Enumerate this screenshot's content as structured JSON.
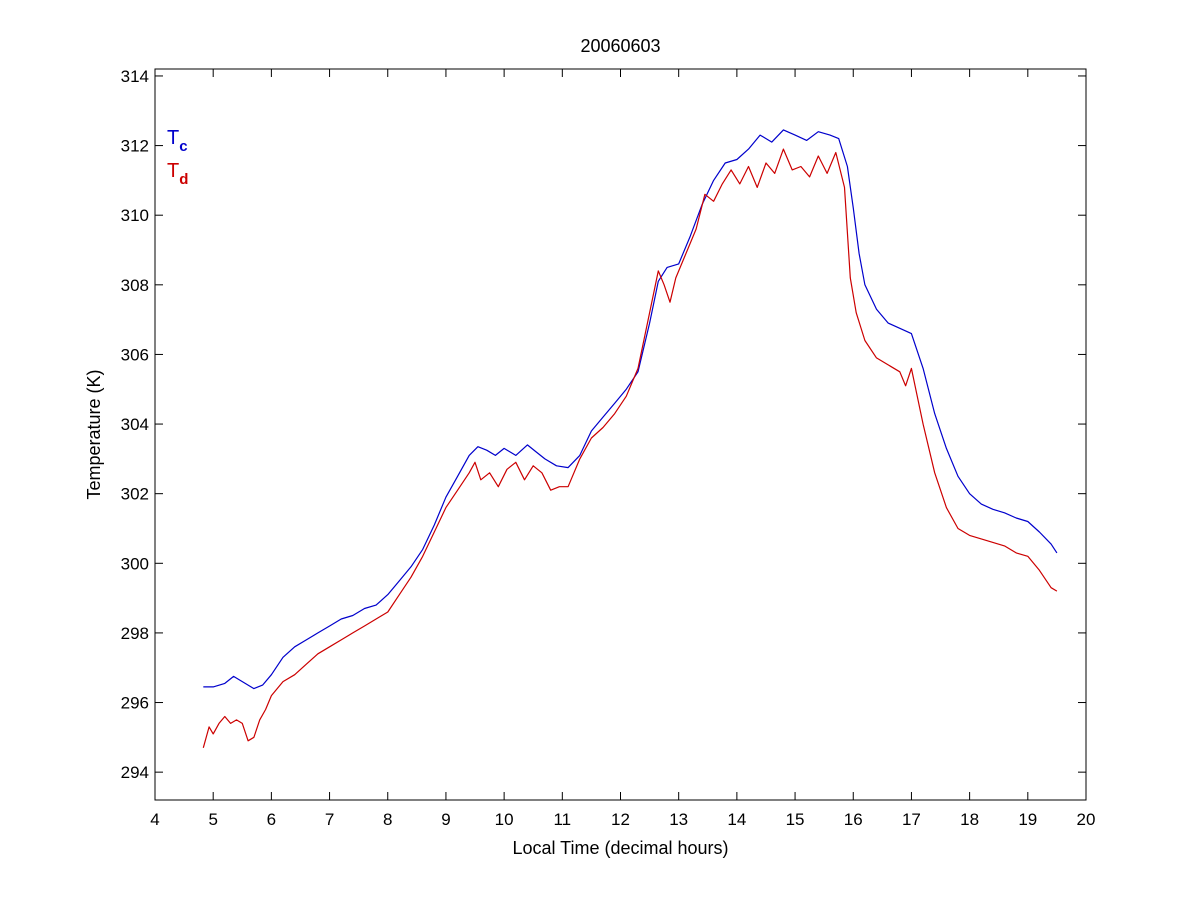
{
  "chart_data": {
    "type": "line",
    "title": "20060603",
    "xlabel": "Local Time (decimal hours)",
    "ylabel": "Temperature (K)",
    "xlim": [
      4,
      20
    ],
    "ylim": [
      293.2,
      314.2
    ],
    "xticks": [
      4,
      5,
      6,
      7,
      8,
      9,
      10,
      11,
      12,
      13,
      14,
      15,
      16,
      17,
      18,
      19,
      20
    ],
    "yticks": [
      294,
      296,
      298,
      300,
      302,
      304,
      306,
      308,
      310,
      312,
      314
    ],
    "grid": false,
    "legend": {
      "placement": "top-left",
      "entries": [
        {
          "main": "T",
          "sub": "c",
          "color": "#0000cc"
        },
        {
          "main": "T",
          "sub": "d",
          "color": "#cc0000"
        }
      ]
    },
    "series": [
      {
        "id": "tc",
        "color": "#0000cc",
        "x": [
          4.83,
          5.0,
          5.2,
          5.35,
          5.5,
          5.7,
          5.85,
          6.0,
          6.2,
          6.4,
          6.6,
          6.8,
          7.0,
          7.2,
          7.4,
          7.6,
          7.8,
          8.0,
          8.2,
          8.4,
          8.6,
          8.8,
          9.0,
          9.2,
          9.4,
          9.55,
          9.7,
          9.85,
          10.0,
          10.2,
          10.4,
          10.55,
          10.7,
          10.9,
          11.1,
          11.3,
          11.5,
          11.7,
          11.9,
          12.1,
          12.3,
          12.5,
          12.65,
          12.8,
          13.0,
          13.2,
          13.4,
          13.6,
          13.8,
          14.0,
          14.2,
          14.4,
          14.6,
          14.8,
          15.0,
          15.2,
          15.4,
          15.6,
          15.75,
          15.9,
          16.0,
          16.1,
          16.2,
          16.4,
          16.6,
          16.8,
          17.0,
          17.2,
          17.4,
          17.6,
          17.8,
          18.0,
          18.2,
          18.4,
          18.6,
          18.8,
          19.0,
          19.2,
          19.4,
          19.5
        ],
        "y": [
          296.45,
          296.45,
          296.55,
          296.75,
          296.6,
          296.4,
          296.5,
          296.8,
          297.3,
          297.6,
          297.8,
          298.0,
          298.2,
          298.4,
          298.5,
          298.7,
          298.8,
          299.1,
          299.5,
          299.9,
          300.4,
          301.1,
          301.9,
          302.5,
          303.1,
          303.35,
          303.25,
          303.1,
          303.3,
          303.1,
          303.4,
          303.2,
          303.0,
          302.8,
          302.75,
          303.1,
          303.8,
          304.2,
          304.6,
          305.0,
          305.5,
          306.9,
          308.1,
          308.5,
          308.6,
          309.4,
          310.3,
          311.0,
          311.5,
          311.6,
          311.9,
          312.3,
          312.1,
          312.45,
          312.3,
          312.15,
          312.4,
          312.3,
          312.2,
          311.4,
          310.2,
          308.9,
          308.0,
          307.3,
          306.9,
          306.75,
          306.6,
          305.6,
          304.3,
          303.3,
          302.5,
          302.0,
          301.7,
          301.55,
          301.45,
          301.3,
          301.2,
          300.9,
          300.55,
          300.3
        ]
      },
      {
        "id": "td",
        "color": "#cc0000",
        "x": [
          4.83,
          4.93,
          5.0,
          5.1,
          5.2,
          5.3,
          5.4,
          5.5,
          5.6,
          5.7,
          5.8,
          5.9,
          6.0,
          6.2,
          6.4,
          6.6,
          6.8,
          7.0,
          7.2,
          7.4,
          7.6,
          7.8,
          8.0,
          8.2,
          8.4,
          8.6,
          8.8,
          9.0,
          9.2,
          9.4,
          9.5,
          9.6,
          9.75,
          9.9,
          10.05,
          10.2,
          10.35,
          10.5,
          10.65,
          10.8,
          10.95,
          11.1,
          11.3,
          11.5,
          11.7,
          11.9,
          12.1,
          12.3,
          12.5,
          12.65,
          12.75,
          12.85,
          12.95,
          13.1,
          13.3,
          13.45,
          13.6,
          13.75,
          13.9,
          14.05,
          14.2,
          14.35,
          14.5,
          14.65,
          14.8,
          14.95,
          15.1,
          15.25,
          15.4,
          15.55,
          15.7,
          15.85,
          15.95,
          16.05,
          16.2,
          16.4,
          16.6,
          16.8,
          16.9,
          17.0,
          17.2,
          17.4,
          17.6,
          17.8,
          18.0,
          18.2,
          18.4,
          18.6,
          18.8,
          19.0,
          19.2,
          19.4,
          19.5
        ],
        "y": [
          294.7,
          295.3,
          295.1,
          295.4,
          295.6,
          295.4,
          295.5,
          295.4,
          294.9,
          295.0,
          295.5,
          295.8,
          296.2,
          296.6,
          296.8,
          297.1,
          297.4,
          297.6,
          297.8,
          298.0,
          298.2,
          298.4,
          298.6,
          299.1,
          299.6,
          300.2,
          300.9,
          301.6,
          302.1,
          302.6,
          302.9,
          302.4,
          302.6,
          302.2,
          302.7,
          302.9,
          302.4,
          302.8,
          302.6,
          302.1,
          302.2,
          302.2,
          303.0,
          303.6,
          303.9,
          304.3,
          304.8,
          305.6,
          307.2,
          308.4,
          308.0,
          307.5,
          308.2,
          308.8,
          309.6,
          310.6,
          310.4,
          310.9,
          311.3,
          310.9,
          311.4,
          310.8,
          311.5,
          311.2,
          311.9,
          311.3,
          311.4,
          311.1,
          311.7,
          311.2,
          311.8,
          310.8,
          308.2,
          307.2,
          306.4,
          305.9,
          305.7,
          305.5,
          305.1,
          305.6,
          304.0,
          302.6,
          301.6,
          301.0,
          300.8,
          300.7,
          300.6,
          300.5,
          300.3,
          300.2,
          299.8,
          299.3,
          299.2
        ]
      }
    ]
  }
}
